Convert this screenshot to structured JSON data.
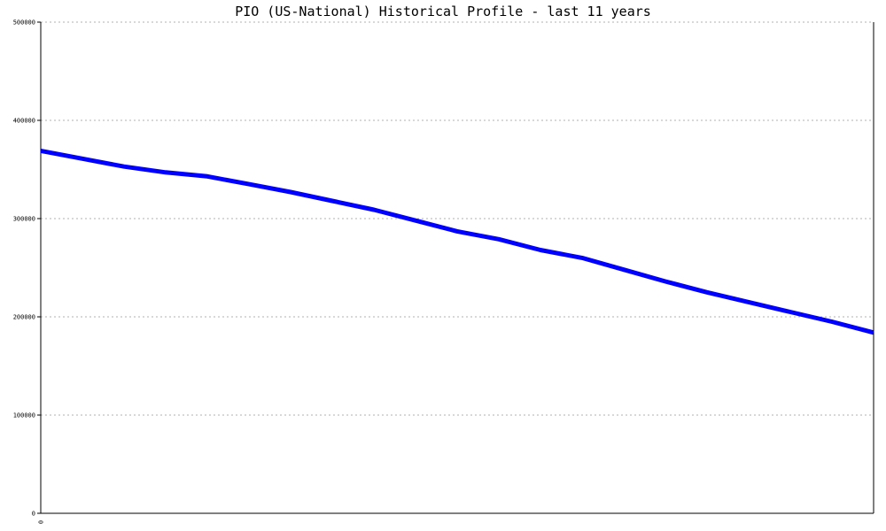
{
  "chart_data": {
    "type": "line",
    "title": "PIO (US-National) Historical Profile - last 11 years",
    "xlabel": "",
    "ylabel": "",
    "ylim": [
      0,
      500000
    ],
    "yticks": [
      "0",
      "100000",
      "200000",
      "300000",
      "400000",
      "500000"
    ],
    "xticks": [
      "0"
    ],
    "grid": true,
    "colors": {
      "line": "#0000ff",
      "grid": "#b0b0b0",
      "axis": "#000000"
    },
    "series": [
      {
        "x": [
          0,
          1,
          2,
          3,
          4,
          5,
          6,
          7,
          8,
          9,
          10,
          11,
          12,
          13,
          14,
          15,
          16,
          17,
          18,
          19,
          20
        ],
        "values": [
          369000,
          361000,
          353000,
          347000,
          343000,
          335000,
          327000,
          318000,
          309000,
          298000,
          287000,
          279000,
          268000,
          260000,
          248000,
          236000,
          225000,
          215000,
          205000,
          195000,
          184000
        ]
      }
    ]
  }
}
